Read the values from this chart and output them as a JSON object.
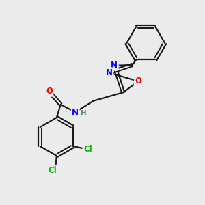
{
  "background_color": "#ebebeb",
  "atom_colors": {
    "C": "#1a1a1a",
    "N": "#0000ff",
    "O": "#ff0000",
    "Cl": "#00bb00",
    "H": "#5a8a8a"
  },
  "bond_color": "#1a1a1a",
  "bond_width": 1.6,
  "dbo": 0.09,
  "figsize": [
    3.0,
    3.0
  ],
  "dpi": 100
}
